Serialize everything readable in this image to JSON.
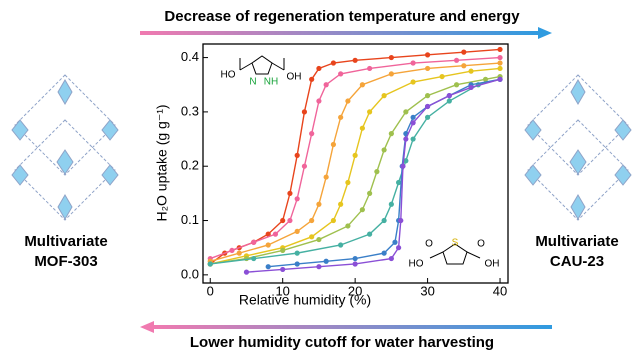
{
  "banner": {
    "top": "Decrease of regeneration temperature and energy",
    "bottom": "Lower humidity cutoff for water harvesting"
  },
  "left_label": [
    "Multivariate",
    "MOF-303"
  ],
  "right_label": [
    "Multivariate",
    "CAU-23"
  ],
  "molecule_top": {
    "left": "HO",
    "right": "OH",
    "n1": "N",
    "n2": "NH"
  },
  "molecule_bottom": {
    "left": "HO",
    "right": "OH",
    "s": "S",
    "o1": "O",
    "o2": "O"
  },
  "chart_data": {
    "type": "line",
    "x_label": "Relative humidity (%)",
    "y_label": "H₂O uptake (g g⁻¹)",
    "xlim": [
      -1,
      41.1
    ],
    "ylim": [
      -0.015,
      0.425
    ],
    "xticks": [
      0,
      10,
      20,
      30,
      40
    ],
    "yticks": [
      {
        "value": 0,
        "label": "0.0"
      },
      0.1,
      0.2,
      0.3,
      0.4
    ],
    "series": [
      {
        "color": "#e8441c",
        "x": [
          0,
          2,
          4,
          6,
          8,
          10,
          11,
          12,
          13,
          14,
          15,
          17,
          20,
          25,
          30,
          35,
          40
        ],
        "values": [
          0.02,
          0.04,
          0.05,
          0.06,
          0.075,
          0.1,
          0.15,
          0.22,
          0.3,
          0.36,
          0.38,
          0.39,
          0.395,
          0.4,
          0.405,
          0.41,
          0.415
        ]
      },
      {
        "color": "#f0649a",
        "x": [
          0,
          3,
          6,
          9,
          11,
          12,
          13,
          14,
          15,
          16,
          18,
          22,
          28,
          34,
          40
        ],
        "values": [
          0.03,
          0.045,
          0.06,
          0.075,
          0.1,
          0.14,
          0.2,
          0.26,
          0.32,
          0.35,
          0.37,
          0.38,
          0.39,
          0.395,
          0.4
        ]
      },
      {
        "color": "#f5a43a",
        "x": [
          0,
          4,
          8,
          12,
          14,
          15,
          16,
          17,
          18,
          19,
          21,
          25,
          30,
          35,
          40
        ],
        "values": [
          0.025,
          0.04,
          0.055,
          0.08,
          0.1,
          0.13,
          0.18,
          0.24,
          0.29,
          0.32,
          0.35,
          0.37,
          0.38,
          0.385,
          0.39
        ]
      },
      {
        "color": "#e6c51e",
        "x": [
          0,
          5,
          10,
          14,
          17,
          18,
          19,
          20,
          21,
          22,
          24,
          28,
          32,
          36,
          40
        ],
        "values": [
          0.02,
          0.035,
          0.05,
          0.07,
          0.1,
          0.13,
          0.17,
          0.22,
          0.27,
          0.3,
          0.33,
          0.355,
          0.365,
          0.375,
          0.38
        ]
      },
      {
        "color": "#9fc04e",
        "x": [
          0,
          5,
          10,
          15,
          19,
          21,
          22,
          23,
          24,
          25,
          27,
          30,
          34,
          38,
          40
        ],
        "values": [
          0.02,
          0.03,
          0.045,
          0.065,
          0.09,
          0.12,
          0.15,
          0.19,
          0.23,
          0.26,
          0.3,
          0.33,
          0.35,
          0.36,
          0.365
        ]
      },
      {
        "color": "#45b0a2",
        "x": [
          0,
          6,
          12,
          18,
          22,
          24,
          25,
          26,
          27,
          28,
          30,
          33,
          37,
          40
        ],
        "values": [
          0.02,
          0.03,
          0.04,
          0.055,
          0.075,
          0.1,
          0.13,
          0.17,
          0.21,
          0.25,
          0.29,
          0.32,
          0.35,
          0.36
        ]
      },
      {
        "color": "#3a7fc8",
        "x": [
          8,
          12,
          16,
          20,
          24,
          25.5,
          26,
          26.5,
          27,
          28,
          30,
          33,
          36,
          40
        ],
        "values": [
          0.015,
          0.02,
          0.025,
          0.03,
          0.04,
          0.06,
          0.1,
          0.2,
          0.26,
          0.29,
          0.31,
          0.33,
          0.35,
          0.36
        ]
      },
      {
        "color": "#8a4fd6",
        "x": [
          5,
          10,
          15,
          20,
          25,
          26,
          26.3,
          26.6,
          27,
          28,
          30,
          33,
          36,
          40
        ],
        "values": [
          0.005,
          0.01,
          0.015,
          0.02,
          0.03,
          0.05,
          0.1,
          0.2,
          0.25,
          0.28,
          0.31,
          0.33,
          0.345,
          0.36
        ]
      }
    ]
  }
}
